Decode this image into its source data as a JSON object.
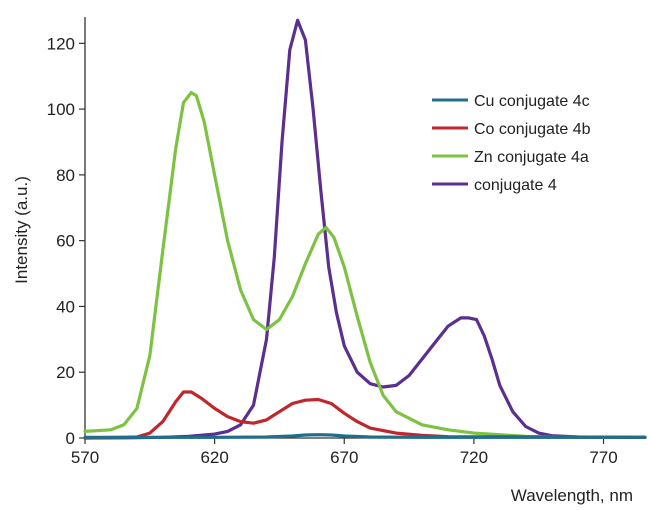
{
  "chart_data": {
    "type": "line",
    "title": "",
    "xlabel": "Wavelength, nm",
    "ylabel": "Intensity (a.u.)",
    "xlim": [
      570,
      786
    ],
    "ylim": [
      0,
      128
    ],
    "xticks": [
      570,
      620,
      670,
      720,
      770
    ],
    "yticks": [
      0,
      20,
      40,
      60,
      80,
      100,
      120
    ],
    "grid": false,
    "legend_position": "top-right",
    "series": [
      {
        "name": "Cu conjugate 4c",
        "color": "#1f6f8b",
        "x": [
          570,
          620,
          640,
          650,
          655,
          660,
          665,
          670,
          680,
          700,
          786
        ],
        "y": [
          0.2,
          0.2,
          0.3,
          0.6,
          0.9,
          1.0,
          0.9,
          0.6,
          0.3,
          0.2,
          0.2
        ]
      },
      {
        "name": "Co conjugate 4b",
        "color": "#c0272d",
        "x": [
          570,
          590,
          595,
          600,
          605,
          608,
          611,
          615,
          620,
          625,
          630,
          635,
          640,
          645,
          650,
          655,
          660,
          665,
          670,
          675,
          680,
          690,
          700,
          710,
          786
        ],
        "y": [
          0,
          0.3,
          1.5,
          5,
          11,
          14,
          14,
          12,
          9,
          6.5,
          5,
          4.5,
          5.5,
          8,
          10.5,
          11.5,
          11.7,
          10.5,
          7.5,
          5,
          3,
          1.5,
          0.8,
          0.4,
          0.2
        ]
      },
      {
        "name": "Zn conjugate 4a",
        "color": "#7dc242",
        "x": [
          570,
          580,
          585,
          590,
          595,
          600,
          605,
          608,
          611,
          613,
          616,
          620,
          625,
          630,
          635,
          640,
          645,
          650,
          655,
          660,
          663,
          666,
          670,
          675,
          680,
          685,
          690,
          700,
          710,
          720,
          730,
          740,
          750,
          786
        ],
        "y": [
          2,
          2.5,
          4,
          9,
          25,
          57,
          88,
          102,
          105,
          104,
          96,
          80,
          60,
          45,
          36,
          33,
          36,
          43,
          53,
          62,
          64,
          61,
          52,
          37,
          23,
          13,
          8,
          4,
          2.5,
          1.5,
          1,
          0.5,
          0.3,
          0.2
        ]
      },
      {
        "name": "conjugate 4",
        "color": "#5b2f8e",
        "x": [
          570,
          590,
          600,
          610,
          620,
          625,
          630,
          635,
          640,
          643,
          646,
          649,
          652,
          655,
          658,
          661,
          664,
          667,
          670,
          675,
          680,
          685,
          690,
          695,
          700,
          705,
          710,
          715,
          718,
          721,
          724,
          727,
          730,
          735,
          740,
          745,
          750,
          760,
          786
        ],
        "y": [
          0,
          0.1,
          0.2,
          0.5,
          1.2,
          2,
          4,
          10,
          30,
          55,
          90,
          118,
          127,
          121,
          100,
          75,
          52,
          38,
          28,
          20,
          16.5,
          15.5,
          16,
          19,
          24,
          29,
          34,
          36.5,
          36.5,
          36,
          31,
          24,
          16,
          8,
          3.5,
          1.5,
          0.7,
          0.3,
          0.2
        ]
      }
    ]
  }
}
